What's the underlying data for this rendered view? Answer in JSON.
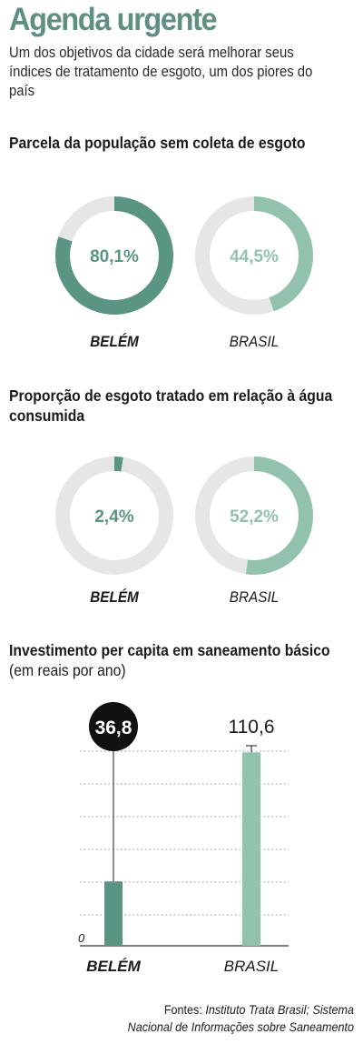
{
  "header": {
    "title": "Agenda urgente",
    "subtitle": "Um dos objetivos da cidade será melhorar seus índices de tratamento de esgoto, um dos piores do país"
  },
  "colors": {
    "belem": "#5a9482",
    "brasil": "#92c2ad",
    "track": "#e6e6e6",
    "title": "#5f8f82"
  },
  "sections": [
    {
      "title": "Parcela da população sem coleta de esgoto",
      "title_suffix": ""
    },
    {
      "title": "Proporção de esgoto tratado em relação à água consumida",
      "title_suffix": ""
    },
    {
      "title": "Investimento per capita em saneamento básico",
      "title_suffix": " (em reais por ano)"
    }
  ],
  "chart_data": [
    {
      "type": "pie",
      "title": "Parcela da população sem coleta de esgoto",
      "categories": [
        "BELÉM",
        "BRASIL"
      ],
      "values": [
        80.1,
        44.5
      ],
      "value_labels": [
        "80,1%",
        "44,5%"
      ],
      "unit": "%"
    },
    {
      "type": "pie",
      "title": "Proporção de esgoto tratado em relação à água consumida",
      "categories": [
        "BELÉM",
        "BRASIL"
      ],
      "values": [
        2.4,
        52.2
      ],
      "value_labels": [
        "2,4%",
        "52,2%"
      ],
      "unit": "%"
    },
    {
      "type": "bar",
      "title": "Investimento per capita em saneamento básico",
      "subtitle": "(em reais por ano)",
      "categories": [
        "BELÉM",
        "BRASIL"
      ],
      "values": [
        36.8,
        110.6
      ],
      "value_labels": [
        "36,8",
        "110,6"
      ],
      "ylim": [
        0,
        130
      ],
      "y_tick_label": "0",
      "grid": true
    }
  ],
  "sources": {
    "prefix": "Fontes: ",
    "line1": "Instituto Trata Brasil; Sistema",
    "line2": "Nacional de Informações sobre Saneamento"
  }
}
